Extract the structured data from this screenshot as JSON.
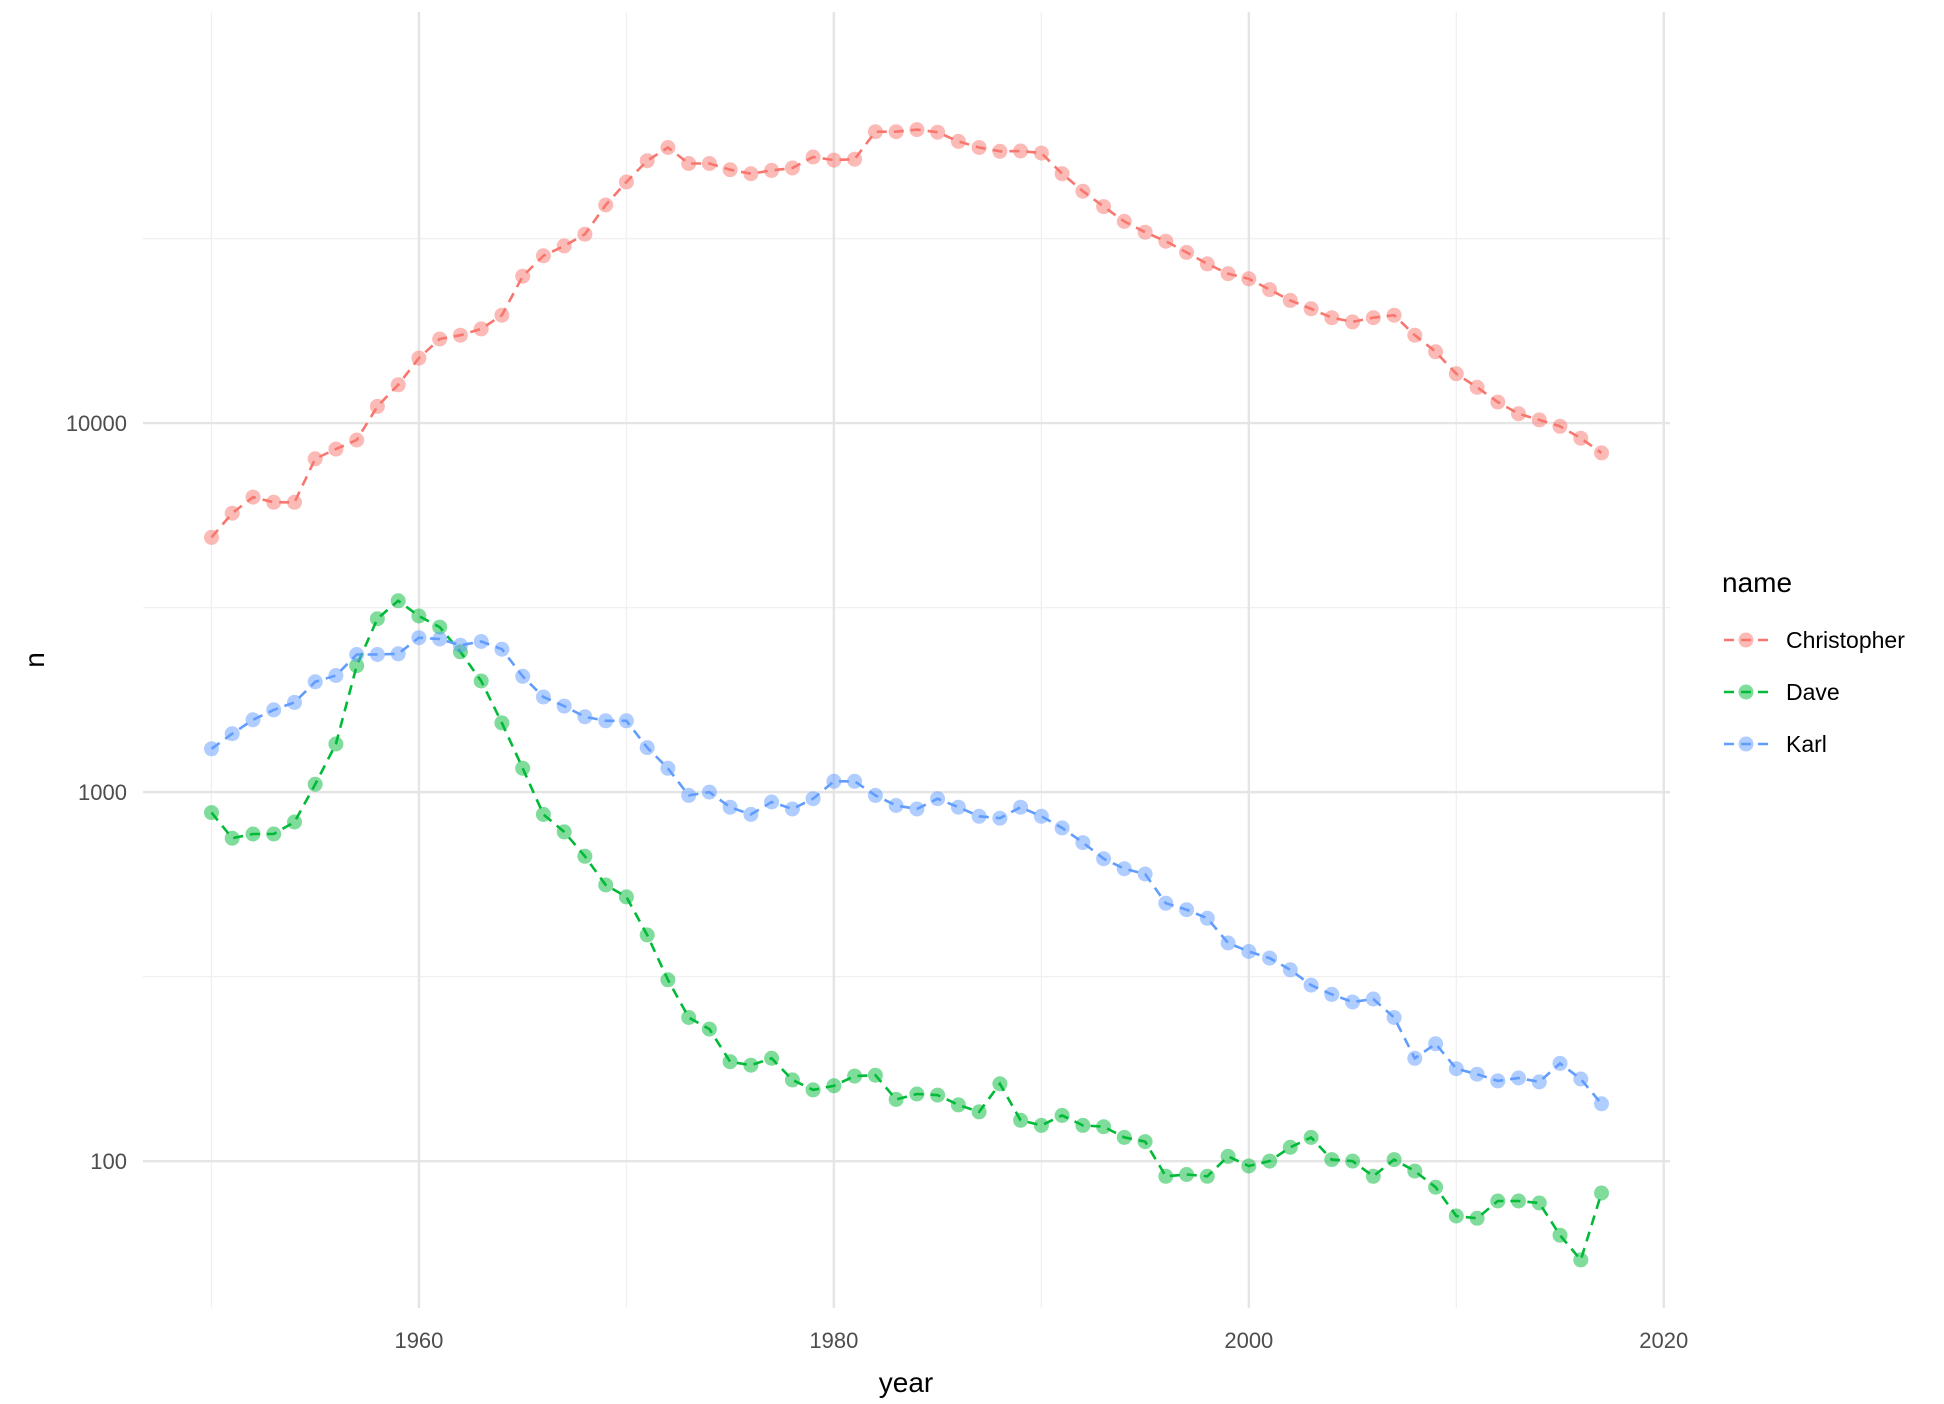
{
  "chart_data": {
    "type": "line",
    "xlabel": "year",
    "ylabel": "n",
    "y_scale": "log10",
    "xlim": [
      1946.7,
      2020.3
    ],
    "ylim": [
      40,
      130000
    ],
    "x_ticks": [
      1960,
      1980,
      2000,
      2020
    ],
    "x_tick_labels": [
      "1960",
      "1980",
      "2000",
      "2020"
    ],
    "y_ticks": [
      100,
      1000,
      10000
    ],
    "y_tick_labels": [
      "100",
      "1000",
      "10000"
    ],
    "grid": true,
    "line_style": "dashed",
    "markers": "circle",
    "legend": {
      "title": "name",
      "position": "right"
    },
    "x": [
      1950,
      1951,
      1952,
      1953,
      1954,
      1955,
      1956,
      1957,
      1958,
      1959,
      1960,
      1961,
      1962,
      1963,
      1964,
      1965,
      1966,
      1967,
      1968,
      1969,
      1970,
      1971,
      1972,
      1973,
      1974,
      1975,
      1976,
      1977,
      1978,
      1979,
      1980,
      1981,
      1982,
      1983,
      1984,
      1985,
      1986,
      1987,
      1988,
      1989,
      1990,
      1991,
      1992,
      1993,
      1994,
      1995,
      1996,
      1997,
      1998,
      1999,
      2000,
      2001,
      2002,
      2003,
      2004,
      2005,
      2006,
      2007,
      2008,
      2009,
      2010,
      2011,
      2012,
      2013,
      2014,
      2015,
      2016,
      2017
    ],
    "series": [
      {
        "name": "Christopher",
        "color": "#F8766D",
        "values": [
          4900,
          5700,
          6300,
          6100,
          6100,
          8000,
          8500,
          9000,
          11100,
          12700,
          15000,
          16900,
          17300,
          18000,
          19600,
          25000,
          28400,
          30200,
          32500,
          39000,
          45000,
          51400,
          55800,
          50500,
          50500,
          48600,
          47400,
          48400,
          49100,
          52600,
          51600,
          51900,
          61600,
          61600,
          62400,
          61400,
          58000,
          55800,
          54500,
          54600,
          53900,
          47400,
          42500,
          38600,
          35200,
          32900,
          31100,
          29000,
          27000,
          25400,
          24600,
          23000,
          21500,
          20400,
          19300,
          18800,
          19300,
          19600,
          17300,
          15600,
          13600,
          12500,
          11400,
          10600,
          10200,
          9800,
          9100,
          8300
        ]
      },
      {
        "name": "Dave",
        "color": "#00BA38",
        "values": [
          880,
          750,
          770,
          770,
          830,
          1050,
          1350,
          2200,
          2950,
          3300,
          3000,
          2800,
          2400,
          2000,
          1540,
          1160,
          870,
          780,
          670,
          560,
          520,
          410,
          310,
          245,
          228,
          186,
          182,
          190,
          166,
          156,
          160,
          170,
          171,
          147,
          152,
          151,
          142,
          136,
          162,
          129,
          125,
          133,
          125,
          124,
          116,
          113,
          91,
          92,
          91,
          103,
          97,
          100,
          109,
          116,
          101,
          100,
          91,
          101,
          94,
          85,
          71,
          70,
          78,
          78,
          77,
          63,
          54,
          82
        ]
      },
      {
        "name": "Karl",
        "color": "#619CFF",
        "values": [
          1310,
          1440,
          1570,
          1670,
          1750,
          1990,
          2070,
          2360,
          2360,
          2370,
          2620,
          2600,
          2500,
          2560,
          2440,
          2060,
          1810,
          1710,
          1600,
          1560,
          1560,
          1320,
          1160,
          980,
          1000,
          910,
          870,
          940,
          900,
          960,
          1070,
          1070,
          980,
          920,
          900,
          960,
          910,
          860,
          850,
          910,
          860,
          800,
          730,
          660,
          620,
          600,
          500,
          480,
          455,
          390,
          370,
          355,
          330,
          300,
          283,
          270,
          275,
          245,
          190,
          208,
          178,
          172,
          165,
          168,
          164,
          184,
          167,
          143
        ]
      }
    ]
  }
}
